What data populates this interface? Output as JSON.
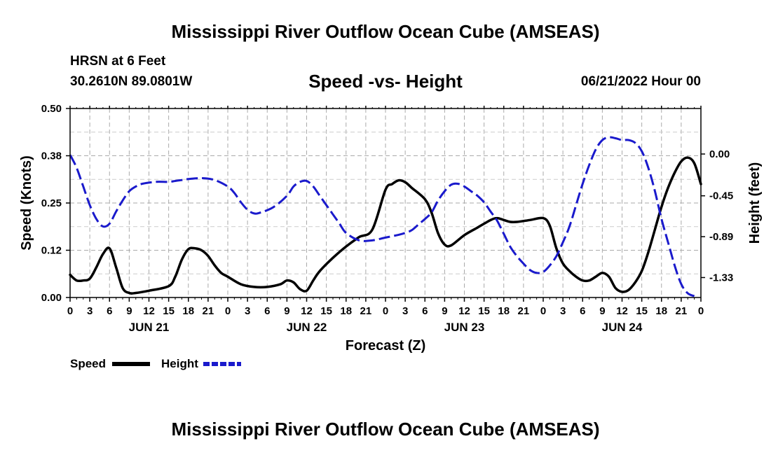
{
  "header": {
    "title": "Mississippi River Outflow Ocean Cube (AMSEAS)",
    "station": "HRSN at 6 Feet",
    "coords": "30.2610N  89.0801W",
    "subtitle": "Speed -vs- Height",
    "datetime": "06/21/2022 Hour 00"
  },
  "footer": {
    "title": "Mississippi River Outflow Ocean Cube (AMSEAS)"
  },
  "colors": {
    "speed": "#000000",
    "height": "#1a1acc",
    "grid": "#aaaaaa"
  },
  "chart_data": {
    "type": "line",
    "xlabel": "Forecast (Z)",
    "ylabel_left": "Speed (Knots)",
    "ylabel_right": "Height (feet)",
    "xlim": [
      0,
      96
    ],
    "ylim_left": [
      0,
      0.5
    ],
    "ylim_right": [
      -1.545,
      0.49
    ],
    "x_tick_labels": [
      "0",
      "3",
      "6",
      "9",
      "12",
      "15",
      "18",
      "21",
      "0",
      "3",
      "6",
      "9",
      "12",
      "15",
      "18",
      "21",
      "0",
      "3",
      "6",
      "9",
      "12",
      "15",
      "18",
      "21",
      "0",
      "3",
      "6",
      "9",
      "12",
      "15",
      "18",
      "21",
      "0"
    ],
    "day_labels": [
      {
        "label": "JUN 21",
        "x": 12
      },
      {
        "label": "JUN 22",
        "x": 36
      },
      {
        "label": "JUN 23",
        "x": 60
      },
      {
        "label": "JUN 24",
        "x": 84
      }
    ],
    "y_left_ticks": [
      {
        "value": 0.0,
        "label": "0.00"
      },
      {
        "value": 0.125,
        "label": "0.12"
      },
      {
        "value": 0.25,
        "label": "0.25"
      },
      {
        "value": 0.375,
        "label": "0.38"
      },
      {
        "value": 0.5,
        "label": "0.50"
      }
    ],
    "y_right_ticks": [
      {
        "value": 0.0,
        "label": "0.00"
      },
      {
        "value": -0.45,
        "label": "-0.45"
      },
      {
        "value": -0.89,
        "label": "-0.89"
      },
      {
        "value": -1.33,
        "label": "-1.33"
      }
    ],
    "grid": true,
    "legend": {
      "position": "bottom-left",
      "speed_label": "Speed",
      "height_label": "Height"
    },
    "series": [
      {
        "name": "Speed",
        "axis": "left",
        "style": "solid",
        "points": [
          [
            0,
            0.06
          ],
          [
            1,
            0.045
          ],
          [
            2,
            0.045
          ],
          [
            3,
            0.05
          ],
          [
            4,
            0.08
          ],
          [
            5,
            0.115
          ],
          [
            6,
            0.13
          ],
          [
            7,
            0.08
          ],
          [
            8,
            0.025
          ],
          [
            9,
            0.012
          ],
          [
            10,
            0.012
          ],
          [
            12,
            0.018
          ],
          [
            15,
            0.03
          ],
          [
            16,
            0.055
          ],
          [
            17,
            0.1
          ],
          [
            18,
            0.128
          ],
          [
            19,
            0.13
          ],
          [
            20,
            0.125
          ],
          [
            21,
            0.11
          ],
          [
            22,
            0.085
          ],
          [
            23,
            0.065
          ],
          [
            24,
            0.055
          ],
          [
            26,
            0.035
          ],
          [
            28,
            0.028
          ],
          [
            30,
            0.028
          ],
          [
            32,
            0.035
          ],
          [
            33,
            0.045
          ],
          [
            34,
            0.04
          ],
          [
            35,
            0.022
          ],
          [
            36,
            0.018
          ],
          [
            37,
            0.045
          ],
          [
            38,
            0.07
          ],
          [
            40,
            0.105
          ],
          [
            42,
            0.135
          ],
          [
            44,
            0.16
          ],
          [
            46,
            0.18
          ],
          [
            48,
            0.285
          ],
          [
            49,
            0.3
          ],
          [
            50,
            0.31
          ],
          [
            51,
            0.305
          ],
          [
            52,
            0.29
          ],
          [
            54,
            0.26
          ],
          [
            55,
            0.225
          ],
          [
            56,
            0.17
          ],
          [
            57,
            0.14
          ],
          [
            58,
            0.138
          ],
          [
            60,
            0.165
          ],
          [
            62,
            0.185
          ],
          [
            64,
            0.205
          ],
          [
            65,
            0.21
          ],
          [
            66,
            0.205
          ],
          [
            67,
            0.2
          ],
          [
            68,
            0.2
          ],
          [
            70,
            0.205
          ],
          [
            72,
            0.21
          ],
          [
            73,
            0.19
          ],
          [
            74,
            0.13
          ],
          [
            75,
            0.09
          ],
          [
            76,
            0.07
          ],
          [
            77,
            0.055
          ],
          [
            78,
            0.045
          ],
          [
            79,
            0.045
          ],
          [
            80,
            0.055
          ],
          [
            81,
            0.065
          ],
          [
            82,
            0.055
          ],
          [
            83,
            0.025
          ],
          [
            84,
            0.015
          ],
          [
            85,
            0.02
          ],
          [
            86,
            0.04
          ],
          [
            87,
            0.07
          ],
          [
            88,
            0.12
          ],
          [
            89,
            0.18
          ],
          [
            90,
            0.24
          ],
          [
            91,
            0.29
          ],
          [
            92,
            0.33
          ],
          [
            93,
            0.36
          ],
          [
            94,
            0.37
          ],
          [
            95,
            0.355
          ],
          [
            96,
            0.3
          ]
        ]
      },
      {
        "name": "Height",
        "axis": "right",
        "style": "dashed",
        "points": [
          [
            0,
            -0.01
          ],
          [
            1,
            -0.15
          ],
          [
            2,
            -0.35
          ],
          [
            3,
            -0.55
          ],
          [
            4,
            -0.7
          ],
          [
            5,
            -0.78
          ],
          [
            6,
            -0.75
          ],
          [
            7,
            -0.62
          ],
          [
            8,
            -0.5
          ],
          [
            9,
            -0.4
          ],
          [
            10,
            -0.35
          ],
          [
            11,
            -0.32
          ],
          [
            13,
            -0.3
          ],
          [
            15,
            -0.3
          ],
          [
            16,
            -0.29
          ],
          [
            17,
            -0.28
          ],
          [
            18,
            -0.27
          ],
          [
            20,
            -0.26
          ],
          [
            22,
            -0.28
          ],
          [
            24,
            -0.35
          ],
          [
            25,
            -0.42
          ],
          [
            26,
            -0.52
          ],
          [
            27,
            -0.6
          ],
          [
            28,
            -0.64
          ],
          [
            29,
            -0.63
          ],
          [
            31,
            -0.57
          ],
          [
            33,
            -0.45
          ],
          [
            34,
            -0.35
          ],
          [
            35,
            -0.3
          ],
          [
            36,
            -0.29
          ],
          [
            37,
            -0.35
          ],
          [
            38,
            -0.45
          ],
          [
            39,
            -0.55
          ],
          [
            40,
            -0.65
          ],
          [
            41,
            -0.75
          ],
          [
            42,
            -0.85
          ],
          [
            44,
            -0.93
          ],
          [
            46,
            -0.93
          ],
          [
            48,
            -0.9
          ],
          [
            50,
            -0.87
          ],
          [
            51,
            -0.85
          ],
          [
            52,
            -0.82
          ],
          [
            53,
            -0.76
          ],
          [
            54,
            -0.7
          ],
          [
            55,
            -0.63
          ],
          [
            56,
            -0.5
          ],
          [
            57,
            -0.4
          ],
          [
            58,
            -0.33
          ],
          [
            59,
            -0.32
          ],
          [
            60,
            -0.35
          ],
          [
            61,
            -0.4
          ],
          [
            62,
            -0.45
          ],
          [
            63,
            -0.52
          ],
          [
            64,
            -0.62
          ],
          [
            65,
            -0.72
          ],
          [
            66,
            -0.86
          ],
          [
            67,
            -1.0
          ],
          [
            68,
            -1.1
          ],
          [
            69,
            -1.18
          ],
          [
            70,
            -1.25
          ],
          [
            71,
            -1.28
          ],
          [
            72,
            -1.27
          ],
          [
            73,
            -1.2
          ],
          [
            74,
            -1.1
          ],
          [
            75,
            -0.95
          ],
          [
            76,
            -0.78
          ],
          [
            77,
            -0.55
          ],
          [
            78,
            -0.32
          ],
          [
            79,
            -0.12
          ],
          [
            80,
            0.05
          ],
          [
            81,
            0.15
          ],
          [
            82,
            0.18
          ],
          [
            83,
            0.17
          ],
          [
            84,
            0.15
          ],
          [
            85,
            0.15
          ],
          [
            86,
            0.12
          ],
          [
            87,
            0.03
          ],
          [
            88,
            -0.15
          ],
          [
            89,
            -0.4
          ],
          [
            90,
            -0.7
          ],
          [
            91,
            -0.95
          ],
          [
            92,
            -1.2
          ],
          [
            93,
            -1.4
          ],
          [
            94,
            -1.5
          ],
          [
            95,
            -1.53
          ]
        ]
      }
    ]
  }
}
